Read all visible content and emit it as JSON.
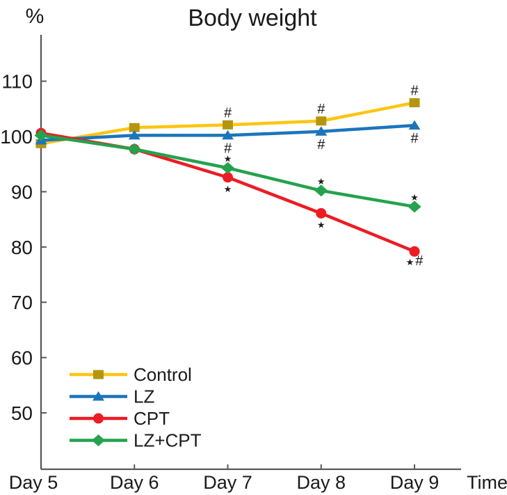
{
  "title": "Body weight",
  "y_axis_unit": "%",
  "x_axis_label": "Time",
  "chart_data": {
    "type": "line",
    "categories": [
      "Day 5",
      "Day 6",
      "Day 7",
      "Day 8",
      "Day 9"
    ],
    "xlabel": "Time",
    "ylabel": "%",
    "yticks": [
      110,
      100,
      90,
      80,
      70,
      60,
      50
    ],
    "ylim": [
      40,
      118
    ],
    "grid": false,
    "legend_position": "inside-bottom-left",
    "axis_color": "#58595b",
    "series": [
      {
        "name": "Control",
        "line_color": "#fdc512",
        "marker": "square",
        "marker_color": "#b5950f",
        "values": [
          98.7,
          101.6,
          102.1,
          102.8,
          106.1
        ]
      },
      {
        "name": "LZ",
        "line_color": "#1b75bc",
        "marker": "triangle",
        "marker_color": "#1b75bc",
        "values": [
          99.3,
          100.2,
          100.2,
          100.9,
          102.0
        ]
      },
      {
        "name": "CPT",
        "line_color": "#ec1c24",
        "marker": "circle",
        "marker_color": "#ec1c24",
        "values": [
          100.6,
          97.7,
          92.6,
          86.1,
          79.2
        ]
      },
      {
        "name": "LZ+CPT",
        "line_color": "#24a24d",
        "marker": "diamond",
        "marker_color": "#24a24d",
        "values": [
          100.2,
          97.7,
          94.3,
          90.2,
          87.3
        ]
      }
    ],
    "annotations": [
      {
        "series": "Control",
        "category": "Day 7",
        "symbol": "#",
        "placement": "above",
        "color": "#c79c10"
      },
      {
        "series": "Control",
        "category": "Day 8",
        "symbol": "#",
        "placement": "above",
        "color": "#c79c10"
      },
      {
        "series": "Control",
        "category": "Day 9",
        "symbol": "#",
        "placement": "above",
        "color": "#c79c10"
      },
      {
        "series": "LZ",
        "category": "Day 7",
        "symbol": "#",
        "placement": "below",
        "color": "#1b75bc"
      },
      {
        "series": "LZ",
        "category": "Day 8",
        "symbol": "#",
        "placement": "below",
        "color": "#1b75bc"
      },
      {
        "series": "LZ",
        "category": "Day 9",
        "symbol": "#",
        "placement": "below",
        "color": "#1b75bc"
      },
      {
        "series": "LZ+CPT",
        "category": "Day 7",
        "symbol": "*",
        "placement": "above",
        "color": "#24a24d"
      },
      {
        "series": "LZ+CPT",
        "category": "Day 8",
        "symbol": "*",
        "placement": "above",
        "color": "#24a24d"
      },
      {
        "series": "LZ+CPT",
        "category": "Day 9",
        "symbol": "*",
        "placement": "above",
        "color": "#24a24d"
      },
      {
        "series": "CPT",
        "category": "Day 7",
        "symbol": "*",
        "placement": "below",
        "color": "#ec1c24"
      },
      {
        "series": "CPT",
        "category": "Day 8",
        "symbol": "*",
        "placement": "below",
        "color": "#ec1c24"
      },
      {
        "series": "CPT",
        "category": "Day 9",
        "symbol": "*#",
        "placement": "below",
        "color": "#ec1c24"
      }
    ]
  }
}
